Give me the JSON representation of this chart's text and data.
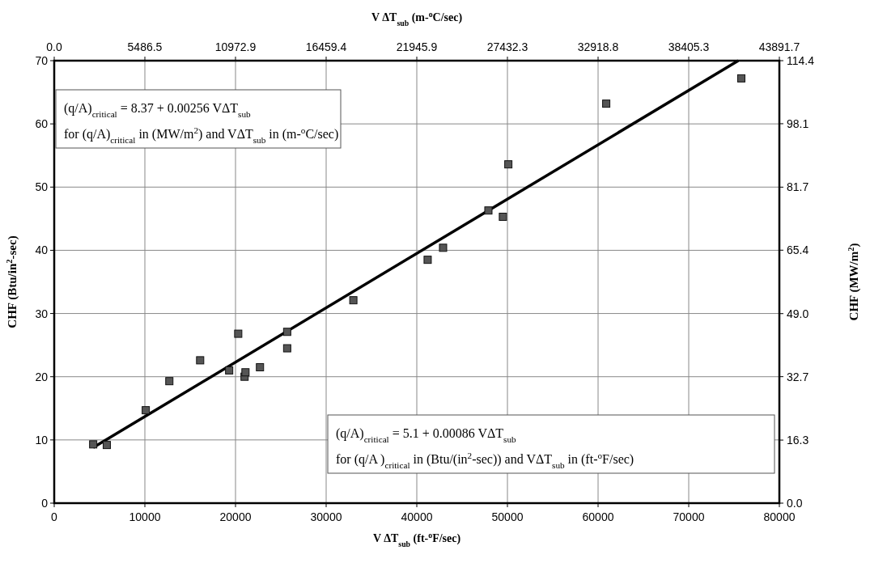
{
  "chart_data": {
    "type": "scatter",
    "xlabel": "V ΔT$_{sub}$ (ft-$^{o}$F/sec)",
    "x2label": "V ΔT$_{sub}$ (m-$^{o}$C/sec)",
    "ylabel": "CHF (Btu/in$^{2}$-sec)",
    "y2label": "CHF (MW/m$^{2}$)",
    "xlim": [
      0,
      80000
    ],
    "xticks": [
      0,
      10000,
      20000,
      30000,
      40000,
      50000,
      60000,
      70000,
      80000
    ],
    "x2lim": [
      0,
      43891.7
    ],
    "x2ticks": [
      {
        "value": 0,
        "label": "0.0"
      },
      5486.5,
      10972.9,
      16459.4,
      21945.9,
      27432.3,
      32918.8,
      38405.3,
      43891.7
    ],
    "ylim": [
      0,
      70
    ],
    "yticks": [
      0,
      10,
      20,
      30,
      40,
      50,
      60,
      70
    ],
    "y2lim": [
      0,
      114.4
    ],
    "y2ticks": [
      {
        "value": 0,
        "label": "0.0"
      },
      16.3,
      32.7,
      {
        "value": 49,
        "label": "49.0"
      },
      65.4,
      81.7,
      98.1,
      114.4
    ],
    "grid": true,
    "series": [
      {
        "color": "#555555",
        "marker": "square",
        "x": [
          4300,
          5800,
          10100,
          12700,
          16100,
          19300,
          20300,
          21000,
          21100,
          22700,
          25700,
          25700,
          33000,
          41200,
          42900,
          47900,
          49500,
          50100,
          60900,
          75800
        ],
        "values": [
          9.3,
          9.2,
          14.7,
          19.3,
          22.6,
          21.0,
          26.8,
          20.0,
          20.7,
          21.5,
          24.5,
          27.1,
          32.1,
          38.5,
          40.4,
          46.3,
          45.3,
          53.6,
          63.2,
          67.2
        ]
      },
      {
        "type": "line",
        "color": "#000000",
        "marker": "none",
        "line_style": "solid",
        "x": [
          4300,
          75465
        ],
        "values": [
          8.8,
          70
        ]
      }
    ],
    "annotations": [
      "(q/A)$_{critical}$ = 8.37 + 0.00256 VΔT$_{sub}$",
      "for (q/A)$_{critical}$ in (MW/m$^{2}$) and VΔT$_{sub}$ in (m-$^{o}$C/sec)",
      "(q/A)$_{critical}$ = 5.1 + 0.00086 VΔT$_{sub}$",
      "for (q/A )$_{critical}$ in (Btu/(in$^{2}$-sec)) and VΔT$_{sub}$ in (ft-$^{o}$F/sec)"
    ]
  }
}
